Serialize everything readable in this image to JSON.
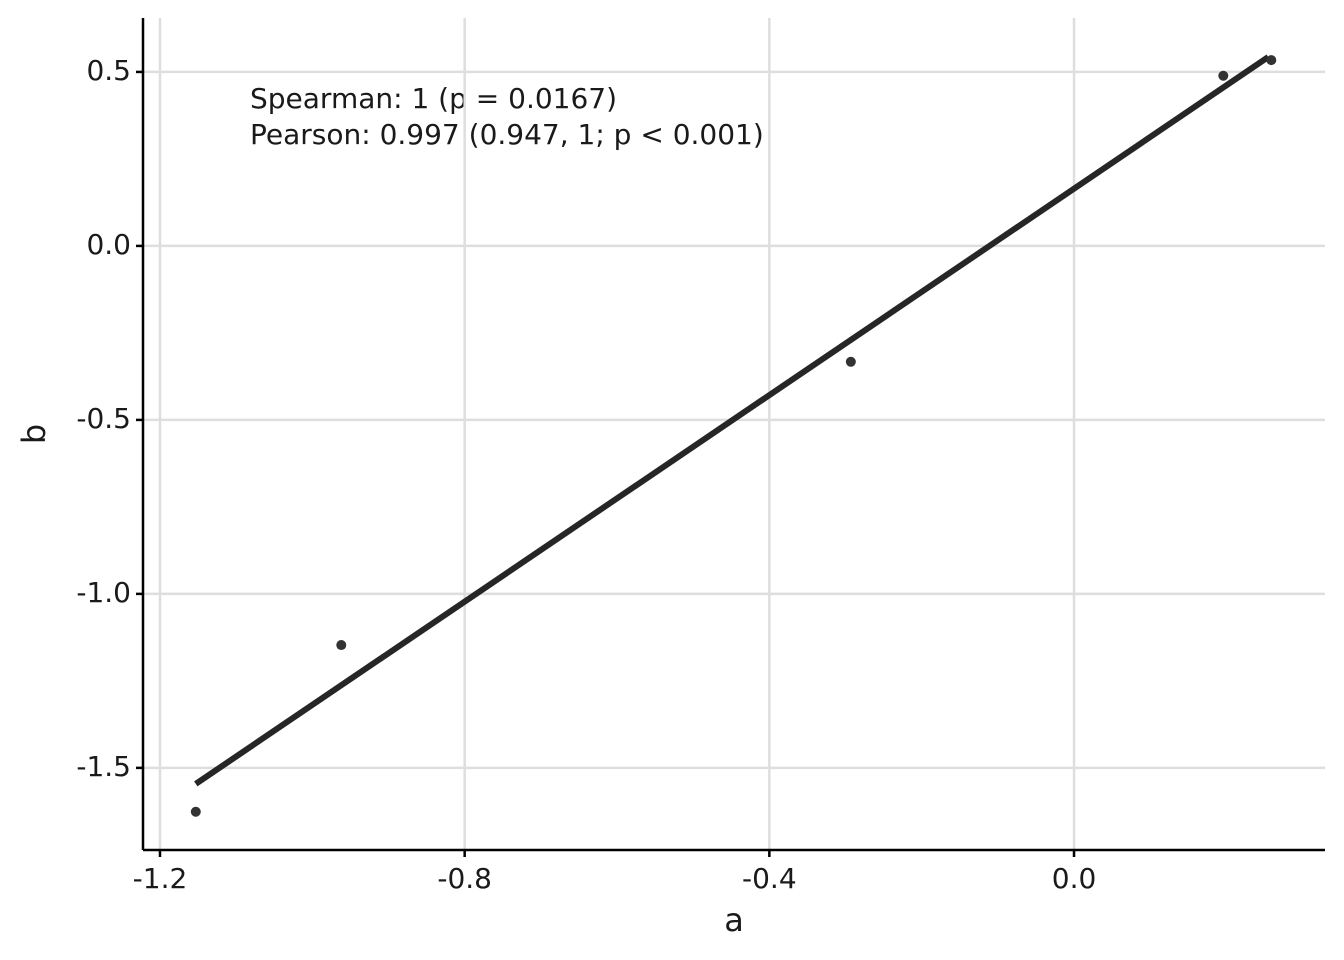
{
  "chart_data": {
    "type": "scatter",
    "x_label": "a",
    "y_label": "b",
    "annotations": [
      "Spearman: 1 (p = 0.0167)",
      "Pearson: 0.997 (0.947, 1; p < 0.001)"
    ],
    "series": [
      {
        "x": [
          -1.153,
          -0.962,
          -0.293,
          0.196,
          0.259
        ],
        "values": [
          -1.626,
          -1.147,
          -0.333,
          0.489,
          0.534
        ],
        "color": "#333333"
      }
    ],
    "fit_line": {
      "x": [
        -1.153,
        0.255
      ],
      "y": [
        -1.546,
        0.543
      ],
      "color": "#262626"
    },
    "xlim": [
      -1.2223,
      0.3295
    ],
    "ylim": [
      -1.736,
      0.655
    ],
    "xticks": [
      -1.2,
      -0.8,
      -0.4,
      {
        "value": 0,
        "label": "0.0"
      }
    ],
    "yticks": [
      -1.5,
      {
        "value": -1,
        "label": "-1.0"
      },
      -0.5,
      {
        "value": 0,
        "label": "0.0"
      },
      0.5
    ],
    "grid": true
  }
}
